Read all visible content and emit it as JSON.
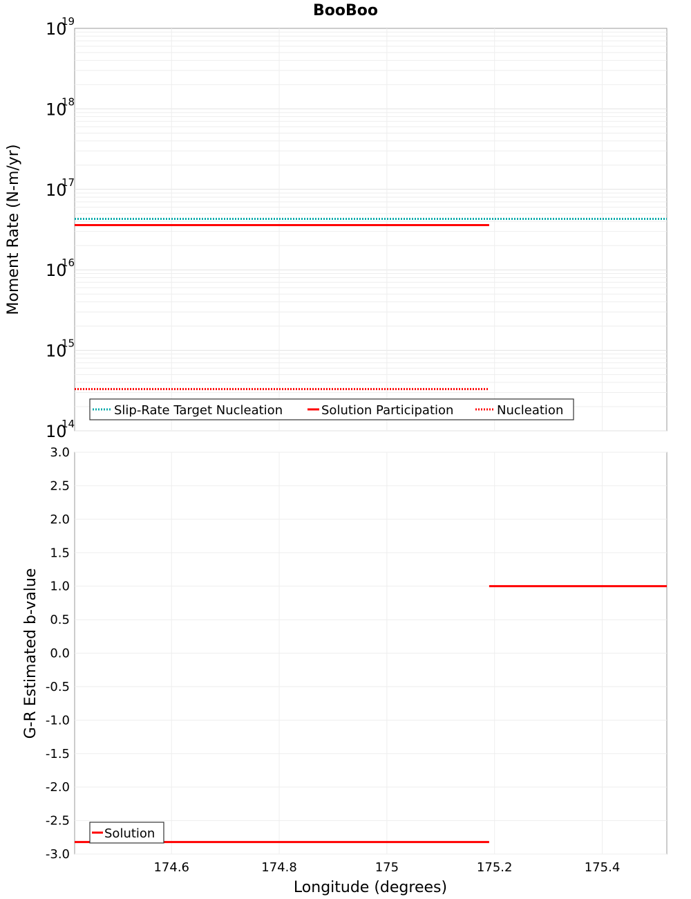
{
  "title": "BooBoo",
  "chart_data": [
    {
      "type": "line",
      "id": "top",
      "ylabel": "Moment Rate (N-m/yr)",
      "yscale": "log",
      "ylim": [
        100000000000000.0,
        1e+19
      ],
      "xlim": [
        174.42,
        175.52
      ],
      "y_ticks": [
        {
          "base": "10",
          "exp": "14"
        },
        {
          "base": "10",
          "exp": "15"
        },
        {
          "base": "10",
          "exp": "16"
        },
        {
          "base": "10",
          "exp": "17"
        },
        {
          "base": "10",
          "exp": "18"
        },
        {
          "base": "10",
          "exp": "19"
        }
      ],
      "series": [
        {
          "name": "Slip-Rate Target Nucleation",
          "color": "#00aaaa",
          "style": "dotted",
          "x": [
            174.42,
            175.52
          ],
          "y": [
            4.3e+16,
            4.3e+16
          ]
        },
        {
          "name": "Solution Participation",
          "color": "#ff0000",
          "style": "solid",
          "x": [
            174.42,
            175.19
          ],
          "y": [
            3.6e+16,
            3.6e+16
          ]
        },
        {
          "name": "Nucleation",
          "color": "#ff0000",
          "style": "dotted",
          "x": [
            174.42,
            175.19
          ],
          "y": [
            330000000000000.0,
            330000000000000.0
          ]
        }
      ],
      "legend": "bottom-left"
    },
    {
      "type": "line",
      "id": "bottom",
      "xlabel": "Longitude (degrees)",
      "ylabel": "G-R Estimated b-value",
      "ylim": [
        -3.0,
        3.0
      ],
      "xlim": [
        174.42,
        175.52
      ],
      "y_ticks": [
        "-3.0",
        "-2.5",
        "-2.0",
        "-1.5",
        "-1.0",
        "-0.5",
        "0.0",
        "0.5",
        "1.0",
        "1.5",
        "2.0",
        "2.5",
        "3.0"
      ],
      "x_ticks": [
        "174.6",
        "174.8",
        "175",
        "175.2",
        "175.4"
      ],
      "series": [
        {
          "name": "Solution",
          "color": "#ff0000",
          "style": "solid",
          "segments": [
            {
              "x": [
                174.42,
                175.19
              ],
              "y": [
                -2.82,
                -2.82
              ]
            },
            {
              "x": [
                175.19,
                175.52
              ],
              "y": [
                1.0,
                1.0
              ]
            }
          ]
        }
      ],
      "legend": "bottom-left"
    }
  ]
}
